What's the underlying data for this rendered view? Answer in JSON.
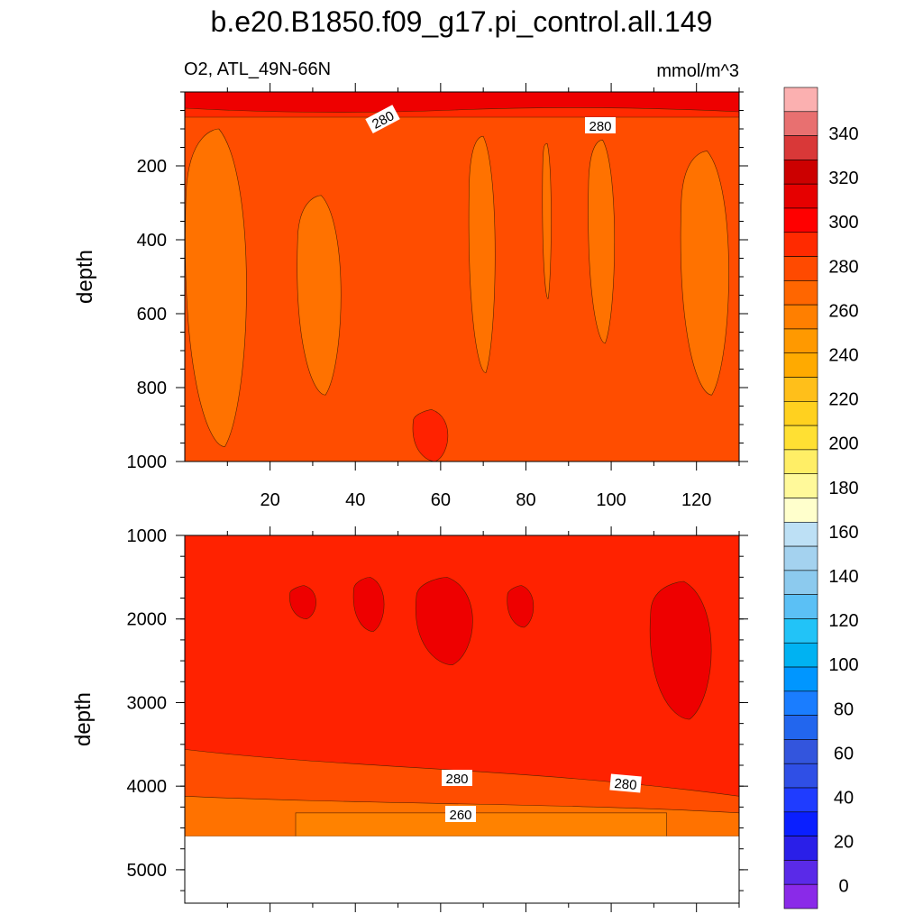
{
  "title": "b.e20.B1850.f09_g17.pi_control.all.149",
  "left_subtitle": "O2, ATL_49N-66N",
  "right_subtitle": "mmol/m^3",
  "chart_data": [
    {
      "type": "heatmap",
      "panel": "upper",
      "ylabel": "depth",
      "xlim": [
        0,
        130
      ],
      "ylim": [
        1000,
        0
      ],
      "x_ticks": [
        "20",
        "40",
        "60",
        "80",
        "100",
        "120"
      ],
      "y_ticks": [
        "200",
        "400",
        "600",
        "800",
        "1000"
      ],
      "background_level": 276,
      "surface_level": 290,
      "contour_labels": [
        "280",
        "280"
      ],
      "regions": [
        {
          "level": 265,
          "x": [
            1,
            15
          ],
          "depth": [
            100,
            960
          ]
        },
        {
          "level": 265,
          "x": [
            27,
            37
          ],
          "depth": [
            280,
            820
          ]
        },
        {
          "level": 265,
          "x": [
            67,
            73
          ],
          "depth": [
            120,
            760
          ]
        },
        {
          "level": 265,
          "x": [
            84,
            86
          ],
          "depth": [
            140,
            560
          ]
        },
        {
          "level": 265,
          "x": [
            95,
            101
          ],
          "depth": [
            130,
            680
          ]
        },
        {
          "level": 265,
          "x": [
            117,
            128
          ],
          "depth": [
            160,
            820
          ]
        },
        {
          "level": 285,
          "x": [
            54,
            62
          ],
          "depth": [
            860,
            1000
          ]
        }
      ]
    },
    {
      "type": "heatmap",
      "panel": "lower",
      "ylabel": "depth",
      "xlim": [
        0,
        130
      ],
      "ylim": [
        5400,
        1000
      ],
      "y_ticks": [
        "1000",
        "2000",
        "3000",
        "4000",
        "5000"
      ],
      "background_level": 285,
      "bottom_limit_depth": 4600,
      "contour_labels": [
        "280",
        "280",
        "260"
      ],
      "regions": [
        {
          "level": 292,
          "x": [
            25,
            31
          ],
          "depth": [
            1600,
            2000
          ]
        },
        {
          "level": 292,
          "x": [
            40,
            47
          ],
          "depth": [
            1500,
            2150
          ]
        },
        {
          "level": 292,
          "x": [
            55,
            68
          ],
          "depth": [
            1500,
            2550
          ]
        },
        {
          "level": 292,
          "x": [
            76,
            82
          ],
          "depth": [
            1600,
            2100
          ]
        },
        {
          "level": 292,
          "x": [
            110,
            124
          ],
          "depth": [
            1550,
            3200
          ]
        }
      ]
    }
  ],
  "colorbar": {
    "labels": [
      "340",
      "320",
      "300",
      "280",
      "260",
      "240",
      "220",
      "200",
      "180",
      "160",
      "140",
      "120",
      "100",
      "80",
      "60",
      "40",
      "20",
      "0"
    ],
    "colors": [
      "#fbb0b0",
      "#e87070",
      "#d93838",
      "#cc0000",
      "#e60000",
      "#ff0000",
      "#ff2a00",
      "#ff4a00",
      "#ff6600",
      "#ff7f00",
      "#ff9900",
      "#ffaa00",
      "#ffbf1a",
      "#ffd11f",
      "#ffe033",
      "#ffee66",
      "#fff99a",
      "#ffffcc",
      "#bde0f5",
      "#a4d2ef",
      "#8ccaee",
      "#5bc0f5",
      "#22c3f7",
      "#00b2f2",
      "#0096ff",
      "#1a7dff",
      "#2266ee",
      "#3355dd",
      "#2f4fe6",
      "#1f3cff",
      "#0a1fff",
      "#2a1fe8",
      "#5a2ae8",
      "#8a2ae8"
    ]
  }
}
